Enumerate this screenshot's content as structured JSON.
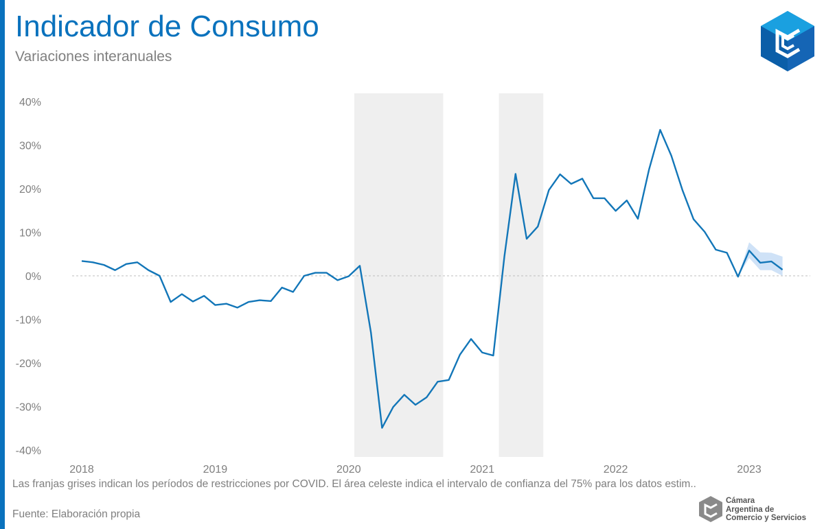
{
  "header": {
    "title": "Indicador de Consumo",
    "subtitle": "Variaciones interanuales"
  },
  "footer": {
    "note": "Las franjas grises indican los períodos de restricciones por COVID. El área celeste indica el intervalo de confianza del 75% para los datos estim..",
    "source": "Fuente: Elaboración propia"
  },
  "org": {
    "line1": "Cámara",
    "line2": "Argentina de",
    "line3": "Comercio y Servicios"
  },
  "colors": {
    "accent": "#0a72bd",
    "line": "#1276b8",
    "band": "#efefef",
    "ci": "#cfe2f7"
  },
  "chart_data": {
    "type": "line",
    "title": "Indicador de Consumo",
    "subtitle": "Variaciones interanuales",
    "xlabel": "",
    "ylabel": "",
    "x_ticks": [
      "2018",
      "2019",
      "2020",
      "2021",
      "2022",
      "2023"
    ],
    "y_ticks": [
      "40%",
      "30%",
      "20%",
      "10%",
      "0%",
      "-10%",
      "-20%",
      "-30%",
      "-40%"
    ],
    "ylim": [
      -40,
      40
    ],
    "grid": false,
    "zero_line": "dashed",
    "series": [
      {
        "values": [
          {
            "x": "2018-01",
            "y": 3.4
          },
          {
            "x": "2018-02",
            "y": 3.1
          },
          {
            "x": "2018-03",
            "y": 2.5
          },
          {
            "x": "2018-04",
            "y": 1.3
          },
          {
            "x": "2018-05",
            "y": 2.7
          },
          {
            "x": "2018-06",
            "y": 3.1
          },
          {
            "x": "2018-07",
            "y": 1.3
          },
          {
            "x": "2018-08",
            "y": 0.0
          },
          {
            "x": "2018-09",
            "y": -6.0
          },
          {
            "x": "2018-10",
            "y": -4.2
          },
          {
            "x": "2018-11",
            "y": -5.9
          },
          {
            "x": "2018-12",
            "y": -4.6
          },
          {
            "x": "2019-01",
            "y": -6.7
          },
          {
            "x": "2019-02",
            "y": -6.4
          },
          {
            "x": "2019-03",
            "y": -7.3
          },
          {
            "x": "2019-04",
            "y": -6.0
          },
          {
            "x": "2019-05",
            "y": -5.6
          },
          {
            "x": "2019-06",
            "y": -5.8
          },
          {
            "x": "2019-07",
            "y": -2.7
          },
          {
            "x": "2019-08",
            "y": -3.7
          },
          {
            "x": "2019-09",
            "y": 0.0
          },
          {
            "x": "2019-10",
            "y": 0.7
          },
          {
            "x": "2019-11",
            "y": 0.7
          },
          {
            "x": "2019-12",
            "y": -1.0
          },
          {
            "x": "2020-01",
            "y": -0.1
          },
          {
            "x": "2020-02",
            "y": 2.3
          },
          {
            "x": "2020-03",
            "y": -13.0
          },
          {
            "x": "2020-04",
            "y": -34.9
          },
          {
            "x": "2020-05",
            "y": -30.1
          },
          {
            "x": "2020-06",
            "y": -27.3
          },
          {
            "x": "2020-07",
            "y": -29.6
          },
          {
            "x": "2020-08",
            "y": -27.9
          },
          {
            "x": "2020-09",
            "y": -24.3
          },
          {
            "x": "2020-10",
            "y": -23.9
          },
          {
            "x": "2020-11",
            "y": -18.1
          },
          {
            "x": "2020-12",
            "y": -14.5
          },
          {
            "x": "2021-01",
            "y": -17.6
          },
          {
            "x": "2021-02",
            "y": -18.3
          },
          {
            "x": "2021-03",
            "y": 4.5
          },
          {
            "x": "2021-04",
            "y": 23.4
          },
          {
            "x": "2021-05",
            "y": 8.5
          },
          {
            "x": "2021-06",
            "y": 11.3
          },
          {
            "x": "2021-07",
            "y": 19.7
          },
          {
            "x": "2021-08",
            "y": 23.3
          },
          {
            "x": "2021-09",
            "y": 21.1
          },
          {
            "x": "2021-10",
            "y": 22.3
          },
          {
            "x": "2021-11",
            "y": 17.8
          },
          {
            "x": "2021-12",
            "y": 17.8
          },
          {
            "x": "2022-01",
            "y": 14.9
          },
          {
            "x": "2022-02",
            "y": 17.3
          },
          {
            "x": "2022-03",
            "y": 13.1
          },
          {
            "x": "2022-04",
            "y": 24.4
          },
          {
            "x": "2022-05",
            "y": 33.5
          },
          {
            "x": "2022-06",
            "y": 27.6
          },
          {
            "x": "2022-07",
            "y": 19.7
          },
          {
            "x": "2022-08",
            "y": 13.0
          },
          {
            "x": "2022-09",
            "y": 10.1
          },
          {
            "x": "2022-10",
            "y": 6.0
          },
          {
            "x": "2022-11",
            "y": 5.3
          },
          {
            "x": "2022-12",
            "y": -0.2
          },
          {
            "x": "2023-01",
            "y": 5.8
          },
          {
            "x": "2023-02",
            "y": 3.0
          },
          {
            "x": "2023-03",
            "y": 3.3
          },
          {
            "x": "2023-04",
            "y": 1.4
          }
        ]
      }
    ],
    "confidence_interval_75": [
      {
        "x": "2022-12",
        "low": -0.2,
        "high": -0.2
      },
      {
        "x": "2023-01",
        "low": 4.1,
        "high": 7.7
      },
      {
        "x": "2023-02",
        "low": 1.3,
        "high": 5.4
      },
      {
        "x": "2023-03",
        "low": 1.3,
        "high": 5.3
      },
      {
        "x": "2023-04",
        "low": 0.0,
        "high": 4.4
      }
    ],
    "covid_restriction_bands": [
      {
        "from": "2020-02",
        "to": "2020-09"
      },
      {
        "from": "2021-03",
        "to": "2021-06"
      }
    ]
  }
}
